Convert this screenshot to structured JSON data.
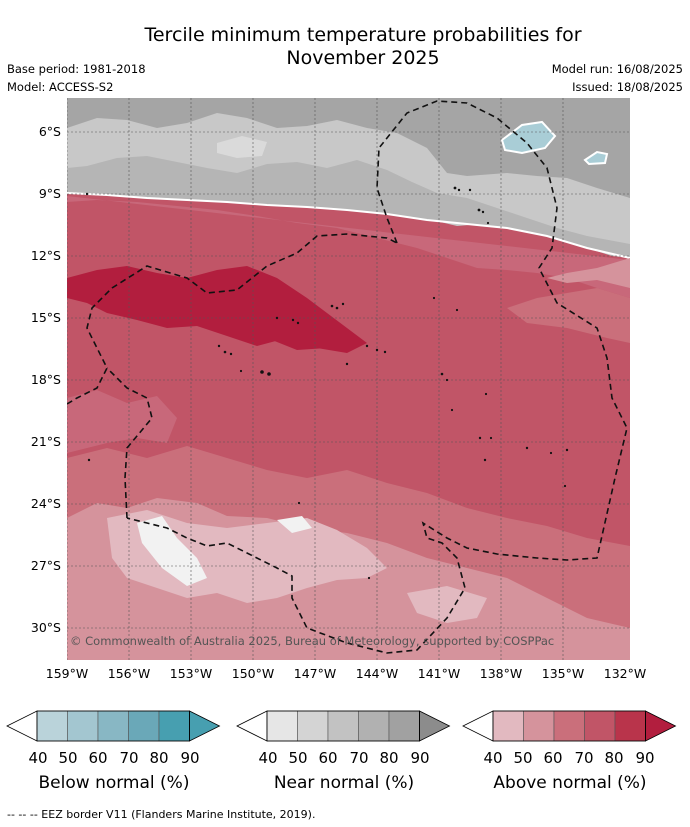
{
  "title": {
    "line1": "Tercile minimum temperature probabilities for",
    "line2": "November 2025"
  },
  "meta": {
    "base_period": "Base period: 1981-2018",
    "model": "Model: ACCESS-S2",
    "model_run": "Model run: 16/08/2025",
    "issued": "Issued: 18/08/2025"
  },
  "map": {
    "lat_labels": [
      "6°S",
      "9°S",
      "12°S",
      "15°S",
      "18°S",
      "21°S",
      "24°S",
      "27°S",
      "30°S"
    ],
    "lon_labels": [
      "159°W",
      "156°W",
      "153°W",
      "150°W",
      "147°W",
      "144°W",
      "141°W",
      "138°W",
      "135°W",
      "132°W"
    ],
    "copyright": "© Commonwealth of Australia 2025, Bureau of Meteorology, supported by COSPPac"
  },
  "legends": [
    {
      "title": "Below normal (%)",
      "ticks": [
        "40",
        "50",
        "60",
        "70",
        "80",
        "90"
      ],
      "colors": [
        "#ffffff",
        "#bad3da",
        "#a3c6d0",
        "#88b7c4",
        "#6aa8b8",
        "#479fb0"
      ]
    },
    {
      "title": "Near normal (%)",
      "ticks": [
        "40",
        "50",
        "60",
        "70",
        "80",
        "90"
      ],
      "colors": [
        "#ffffff",
        "#e6e6e6",
        "#d4d4d4",
        "#c2c2c2",
        "#b1b1b1",
        "#a1a1a1"
      ]
    },
    {
      "title": "Above normal (%)",
      "ticks": [
        "40",
        "50",
        "60",
        "70",
        "80",
        "90"
      ],
      "colors": [
        "#ffffff",
        "#e2b9c0",
        "#d5939c",
        "#ca6f7b",
        "#c15567",
        "#b9344b"
      ]
    }
  ],
  "eez_note": "-- -- -- EEZ border V11 (Flanders Marine Institute, 2019).",
  "colors": {
    "above_40": "#e2b9c0",
    "above_50": "#d5939c",
    "above_60": "#ca6f7b",
    "above_70": "#c15567",
    "above_80": "#b9344b",
    "above_90": "#b21e3e",
    "near_50": "#c8c8c8",
    "near_60": "#b5b5b5",
    "near_70": "#a5a5a5",
    "below_50": "#a9cdd6"
  }
}
